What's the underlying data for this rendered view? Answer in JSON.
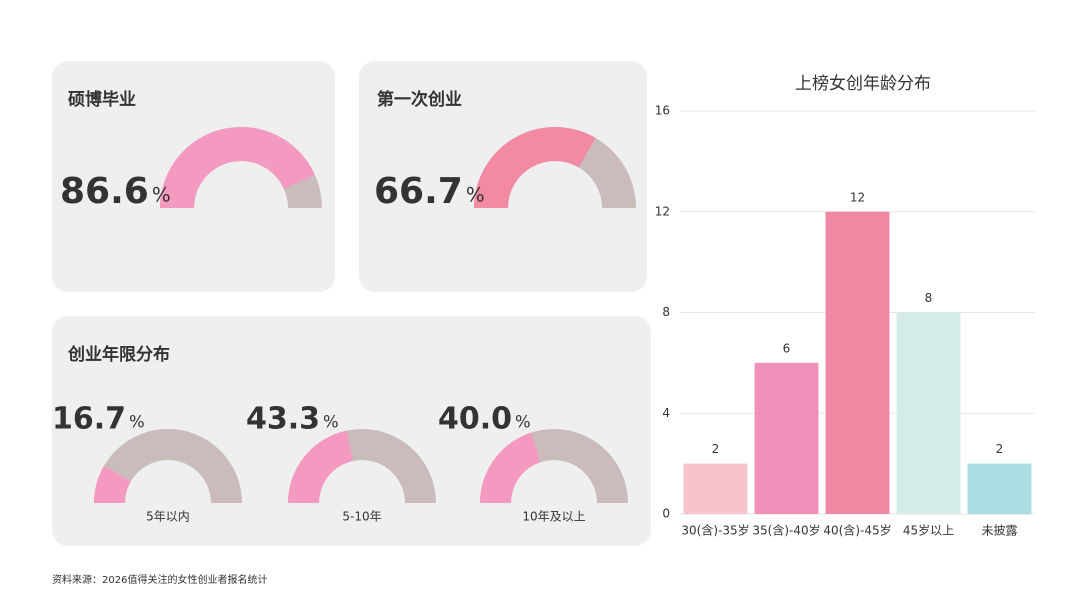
{
  "chart_data": [
    {
      "type": "gauge",
      "title": "硕博毕业",
      "value": 86.6,
      "unit": "%",
      "color": "#f49ac0",
      "track_color": "#cbbcbc"
    },
    {
      "type": "gauge",
      "title": "第一次创业",
      "value": 66.7,
      "unit": "%",
      "color": "#f28aa4",
      "track_color": "#cbbcbc"
    },
    {
      "type": "gauge-group",
      "title": "创业年限分布",
      "categories": [
        "5年以内",
        "5-10年",
        "10年及以上"
      ],
      "values": [
        16.7,
        43.3,
        40.0
      ],
      "value_labels": [
        "16.7",
        "43.3",
        "40.0"
      ],
      "unit": "%",
      "color": "#f49ac0",
      "track_color": "#cbbcbc"
    },
    {
      "type": "bar",
      "title": "上榜女创年龄分布",
      "categories": [
        "30(含)-35岁",
        "35(含)-40岁",
        "40(含)-45岁",
        "45岁以上",
        "未披露"
      ],
      "values": [
        2,
        6,
        12,
        8,
        2
      ],
      "colors": [
        "#f7c4cc",
        "#f090b8",
        "#f088a4",
        "#d3ece9",
        "#abdde2"
      ],
      "ylim": [
        0,
        16
      ],
      "yticks": [
        0,
        4,
        8,
        12,
        16
      ],
      "grid": true
    }
  ],
  "source": "资料来源：2026值得关注的女性创业者报名统计"
}
